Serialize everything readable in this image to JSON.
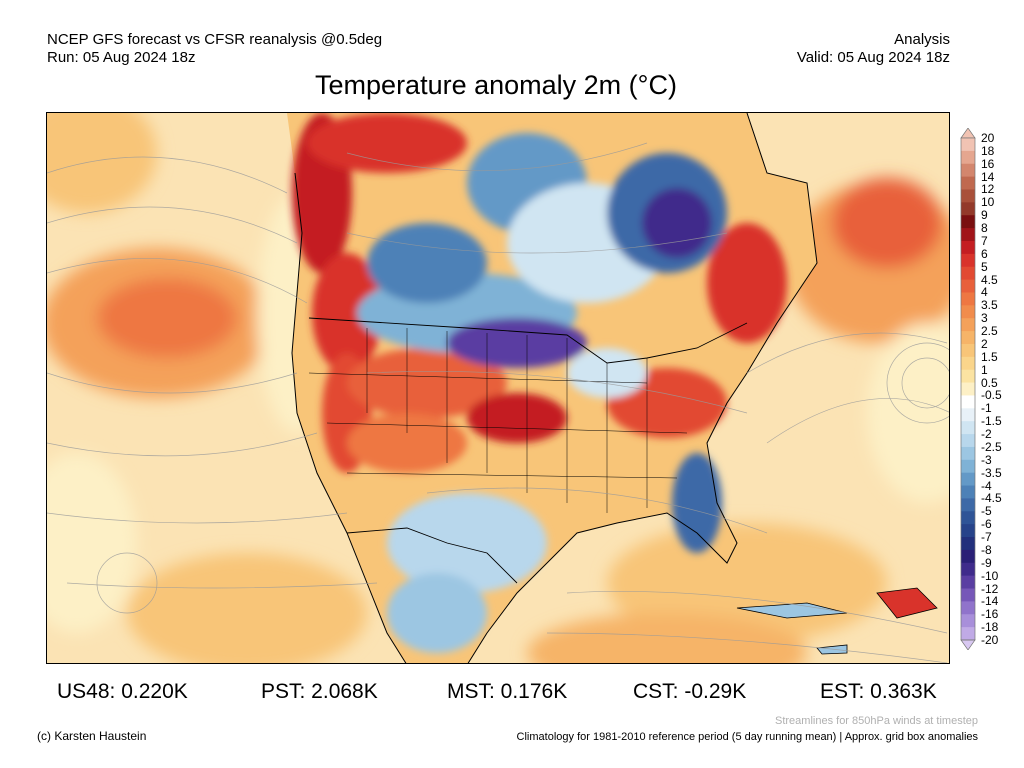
{
  "header": {
    "left_line1": "NCEP GFS forecast vs CFSR reanalysis @0.5deg",
    "left_line2": "Run: 05 Aug 2024 18z",
    "right_line1": "Analysis",
    "right_line2": "Valid: 05 Aug 2024 18z"
  },
  "title": "Temperature anomaly 2m (°C)",
  "colorbar": {
    "ticks": [
      "20",
      "18",
      "16",
      "14",
      "12",
      "10",
      "9",
      "8",
      "7",
      "6",
      "5",
      "4.5",
      "4",
      "3.5",
      "3",
      "2.5",
      "2",
      "1.5",
      "1",
      "0.5",
      "-0.5",
      "-1",
      "-1.5",
      "-2",
      "-2.5",
      "-3",
      "-3.5",
      "-4",
      "-4.5",
      "-5",
      "-6",
      "-7",
      "-8",
      "-9",
      "-10",
      "-12",
      "-14",
      "-16",
      "-18",
      "-20"
    ],
    "colors": [
      "#f1c3b3",
      "#e5a68f",
      "#d3866d",
      "#c0694f",
      "#a9503a",
      "#93392a",
      "#7a0f10",
      "#a11419",
      "#c41e22",
      "#d9332b",
      "#e24a32",
      "#e8603b",
      "#ee7742",
      "#f18c4c",
      "#f4a15a",
      "#f6b468",
      "#f8c578",
      "#fad58b",
      "#fbe3a2",
      "#fdf0c6",
      "#ffffff",
      "#e8f1f8",
      "#d0e5f2",
      "#b8d7ec",
      "#9cc6e2",
      "#7fb2d6",
      "#6399c7",
      "#4d81b7",
      "#3d69a7",
      "#2f5497",
      "#27438a",
      "#22307c",
      "#2a1f76",
      "#3f2b8b",
      "#5a3ea2",
      "#7657b8",
      "#9073cb",
      "#a88fda",
      "#c0aae6",
      "#d8c8f1"
    ]
  },
  "regions": [
    {
      "name": "US48",
      "label": "US48: 0.220K"
    },
    {
      "name": "PST",
      "label": "PST: 2.068K"
    },
    {
      "name": "MST",
      "label": "MST: 0.176K"
    },
    {
      "name": "CST",
      "label": "CST: -0.29K"
    },
    {
      "name": "EST",
      "label": "EST: 0.363K"
    }
  ],
  "footer": {
    "copyright": "(c) Karsten Haustein",
    "streamlines_note": "Streamlines for 850hPa winds at timestep",
    "climatology_note": "Climatology for 1981-2010 reference period (5 day running mean) | Approx. grid box anomalies"
  }
}
